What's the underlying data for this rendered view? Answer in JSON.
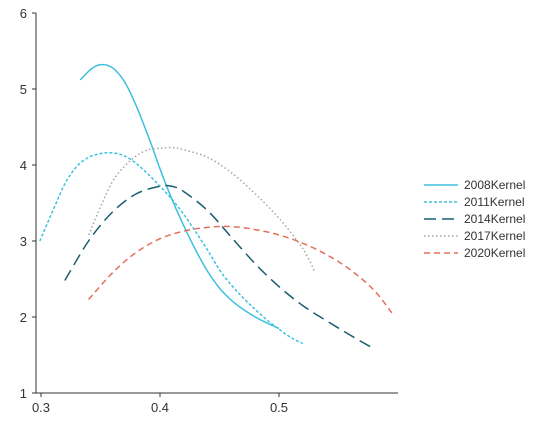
{
  "chart_data": {
    "type": "line",
    "title": "",
    "xlabel": "",
    "ylabel": "",
    "xlim": [
      0.3,
      0.6
    ],
    "ylim": [
      1,
      6
    ],
    "x_ticks": [
      0.3,
      0.4,
      0.5
    ],
    "x_tick_labels": [
      "0.3",
      "0.4",
      "0.5"
    ],
    "y_ticks": [
      1,
      2,
      3,
      4,
      5,
      6
    ],
    "y_tick_labels": [
      "1",
      "2",
      "3",
      "4",
      "5",
      "6"
    ],
    "grid": false,
    "legend_position": "right",
    "series": [
      {
        "name": "2008Kernel",
        "color": "#3ec1df",
        "dash": "solid",
        "points": [
          [
            0.333,
            5.12
          ],
          [
            0.342,
            5.26
          ],
          [
            0.35,
            5.32
          ],
          [
            0.36,
            5.28
          ],
          [
            0.37,
            5.1
          ],
          [
            0.38,
            4.78
          ],
          [
            0.392,
            4.3
          ],
          [
            0.4,
            3.95
          ],
          [
            0.41,
            3.55
          ],
          [
            0.42,
            3.2
          ],
          [
            0.43,
            2.88
          ],
          [
            0.44,
            2.6
          ],
          [
            0.45,
            2.38
          ],
          [
            0.46,
            2.22
          ],
          [
            0.47,
            2.1
          ],
          [
            0.48,
            2.0
          ],
          [
            0.49,
            1.92
          ],
          [
            0.5,
            1.85
          ]
        ]
      },
      {
        "name": "2011Kernel",
        "color": "#3ec1df",
        "dash": "short-dash",
        "points": [
          [
            0.299,
            3.0
          ],
          [
            0.31,
            3.4
          ],
          [
            0.32,
            3.75
          ],
          [
            0.33,
            3.98
          ],
          [
            0.34,
            4.1
          ],
          [
            0.35,
            4.15
          ],
          [
            0.36,
            4.16
          ],
          [
            0.37,
            4.12
          ],
          [
            0.38,
            4.02
          ],
          [
            0.39,
            3.88
          ],
          [
            0.4,
            3.72
          ],
          [
            0.41,
            3.55
          ],
          [
            0.42,
            3.35
          ],
          [
            0.43,
            3.12
          ],
          [
            0.44,
            2.88
          ],
          [
            0.45,
            2.62
          ],
          [
            0.46,
            2.42
          ],
          [
            0.47,
            2.25
          ],
          [
            0.48,
            2.1
          ],
          [
            0.49,
            1.96
          ],
          [
            0.5,
            1.84
          ],
          [
            0.51,
            1.73
          ],
          [
            0.52,
            1.65
          ]
        ]
      },
      {
        "name": "2014Kernel",
        "color": "#1a5d70",
        "dash": "long-dash",
        "points": [
          [
            0.32,
            2.48
          ],
          [
            0.34,
            3.0
          ],
          [
            0.36,
            3.38
          ],
          [
            0.38,
            3.62
          ],
          [
            0.4,
            3.72
          ],
          [
            0.41,
            3.72
          ],
          [
            0.42,
            3.65
          ],
          [
            0.44,
            3.4
          ],
          [
            0.46,
            3.05
          ],
          [
            0.48,
            2.7
          ],
          [
            0.5,
            2.4
          ],
          [
            0.52,
            2.15
          ],
          [
            0.54,
            1.95
          ],
          [
            0.56,
            1.76
          ],
          [
            0.58,
            1.58
          ]
        ]
      },
      {
        "name": "2017Kernel",
        "color": "#a6a6a6",
        "dash": "dotted",
        "points": [
          [
            0.34,
            3.08
          ],
          [
            0.35,
            3.45
          ],
          [
            0.36,
            3.78
          ],
          [
            0.37,
            3.98
          ],
          [
            0.38,
            4.12
          ],
          [
            0.39,
            4.2
          ],
          [
            0.4,
            4.22
          ],
          [
            0.41,
            4.23
          ],
          [
            0.42,
            4.2
          ],
          [
            0.44,
            4.1
          ],
          [
            0.46,
            3.9
          ],
          [
            0.48,
            3.62
          ],
          [
            0.5,
            3.3
          ],
          [
            0.52,
            2.9
          ],
          [
            0.53,
            2.6
          ]
        ]
      },
      {
        "name": "2020Kernel",
        "color": "#e2705a",
        "dash": "dashed",
        "points": [
          [
            0.34,
            2.23
          ],
          [
            0.36,
            2.58
          ],
          [
            0.38,
            2.85
          ],
          [
            0.4,
            3.03
          ],
          [
            0.42,
            3.13
          ],
          [
            0.44,
            3.18
          ],
          [
            0.46,
            3.19
          ],
          [
            0.48,
            3.15
          ],
          [
            0.5,
            3.08
          ],
          [
            0.52,
            2.97
          ],
          [
            0.54,
            2.82
          ],
          [
            0.56,
            2.62
          ],
          [
            0.58,
            2.35
          ],
          [
            0.595,
            2.05
          ]
        ]
      }
    ]
  }
}
